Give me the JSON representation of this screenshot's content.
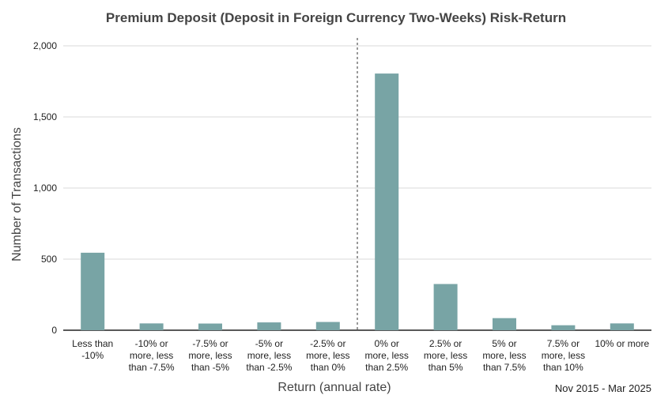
{
  "chart_data": {
    "type": "bar",
    "title": "Premium Deposit (Deposit in Foreign Currency Two-Weeks) Risk-Return",
    "xlabel": "Return (annual rate)",
    "ylabel": "Number of Transactions",
    "period_note": "Nov 2015 - Mar 2025",
    "categories": [
      [
        "Less than",
        "-10%"
      ],
      [
        "-10% or",
        "more, less",
        "than -7.5%"
      ],
      [
        "-7.5% or",
        "more, less",
        "than -5%"
      ],
      [
        "-5% or",
        "more, less",
        "than -2.5%"
      ],
      [
        "-2.5% or",
        "more, less",
        "than 0%"
      ],
      [
        "0% or",
        "more, less",
        "than 2.5%"
      ],
      [
        "2.5% or",
        "more, less",
        "than 5%"
      ],
      [
        "5% or",
        "more, less",
        "than 7.5%"
      ],
      [
        "7.5% or",
        "more, less",
        "than 10%"
      ],
      [
        "10% or more"
      ]
    ],
    "values": [
      545,
      48,
      47,
      55,
      58,
      1805,
      325,
      85,
      35,
      48
    ],
    "ylim": [
      0,
      2000
    ],
    "yticks": [
      0,
      500,
      1000,
      1500,
      2000
    ],
    "ytick_labels": [
      "0",
      "500",
      "1,000",
      "1,500",
      "2,000"
    ],
    "bar_color": "#78a4a5",
    "grid": true,
    "divider": "dashed vertical line between -2.5% to 0% and 0% to 2.5% categories"
  }
}
